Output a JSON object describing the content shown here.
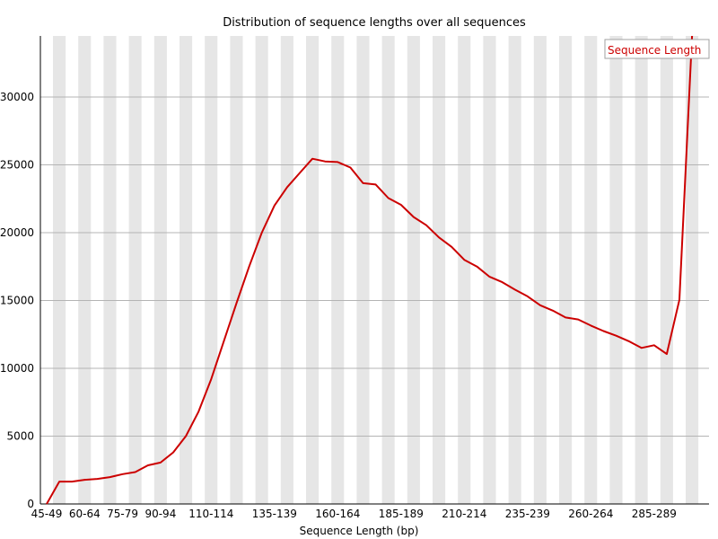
{
  "chart_data": {
    "type": "line",
    "title": "Distribution of sequence lengths over all sequences",
    "xlabel": "Sequence Length (bp)",
    "ylabel": "",
    "ylim": [
      0,
      34500
    ],
    "yticks": [
      0,
      5000,
      10000,
      15000,
      20000,
      25000,
      30000
    ],
    "ytick_labels": [
      "0",
      "5000",
      "10000",
      "15000",
      "20000",
      "25000",
      "30000"
    ],
    "x_tick_labels": [
      "45-49",
      "60-64",
      "75-79",
      "90-94",
      "110-114",
      "135-139",
      "160-164",
      "185-189",
      "210-214",
      "235-239",
      "260-264",
      "285-289"
    ],
    "x_tick_indices": [
      0,
      3,
      6,
      9,
      13,
      18,
      23,
      28,
      33,
      38,
      43,
      48
    ],
    "grid": true,
    "legend_position": "top-right",
    "legend_color": "#cc0000",
    "series": [
      {
        "name": "Sequence Length",
        "color": "#cc0000",
        "values": [
          0,
          1650,
          1650,
          1780,
          1850,
          1980,
          2200,
          2350,
          2850,
          3050,
          3800,
          5000,
          6800,
          9200,
          12000,
          14800,
          17500,
          20000,
          22000,
          23350,
          24400,
          25450,
          25250,
          25200,
          24800,
          23650,
          23550,
          22550,
          22050,
          21150,
          20550,
          19650,
          18950,
          18000,
          17500,
          16750,
          16350,
          15800,
          15300,
          14650,
          14250,
          13750,
          13600,
          13150,
          12750,
          12400,
          12000,
          11500,
          11700,
          11050,
          15050,
          34500
        ]
      }
    ]
  }
}
